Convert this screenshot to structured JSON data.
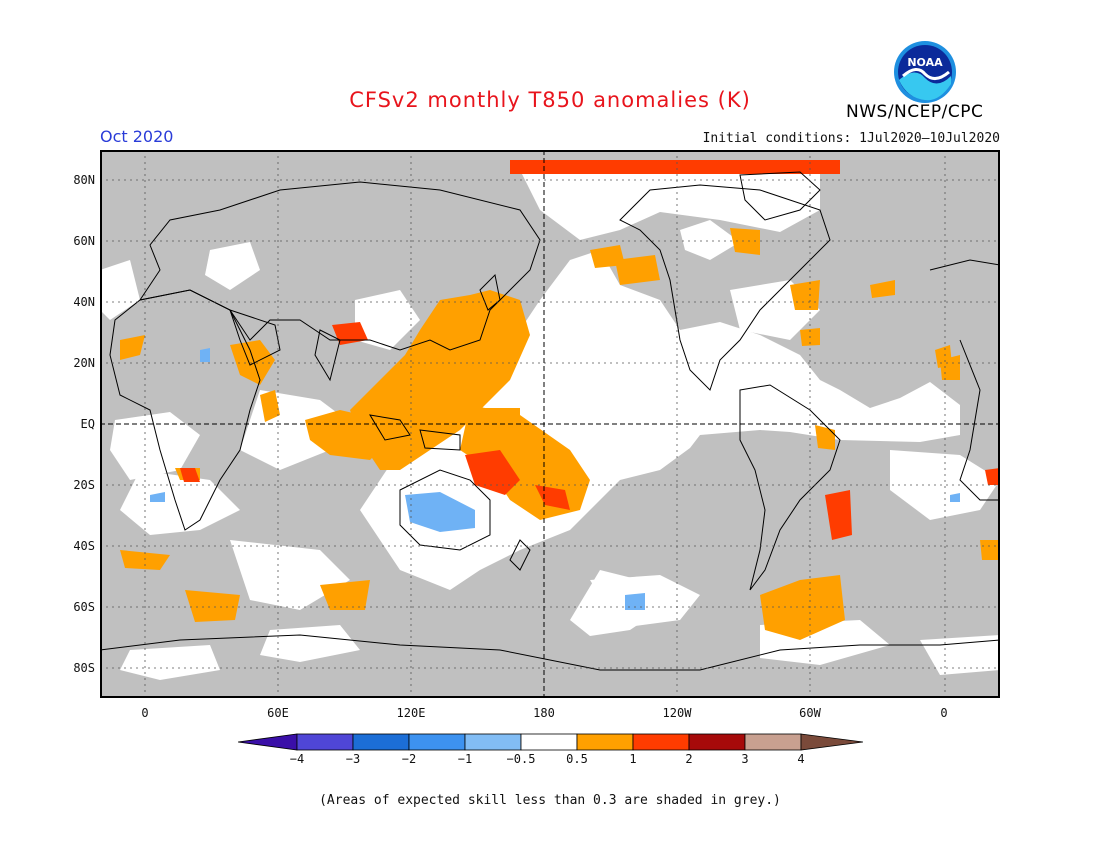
{
  "header": {
    "title": "CFSv2 monthly T850 anomalies (K)",
    "agency": "NWS/NCEP/CPC",
    "logo_text": "NOAA",
    "month": "Oct 2020",
    "initial_conditions": "Initial conditions: 1Jul2020–10Jul2020"
  },
  "map": {
    "projection": "equirectangular",
    "lon_range_deg": [
      -20,
      360
    ],
    "lat_range_deg": [
      -90,
      90
    ],
    "lat_labels": [
      "80N",
      "60N",
      "40N",
      "20N",
      "EQ",
      "20S",
      "40S",
      "60S",
      "80S"
    ],
    "lon_labels": [
      "0",
      "60E",
      "120E",
      "180",
      "120W",
      "60W",
      "0"
    ],
    "colors": {
      "grey_mask": "#c0c0c0",
      "neutral": "#ffffff",
      "pos_05_1": "#ffa000",
      "pos_1_2": "#ff3c00",
      "neg_05_1": "#6fb2f5"
    }
  },
  "colorbar": {
    "labels": [
      "−4",
      "−3",
      "−2",
      "−1",
      "−0.5",
      "0.5",
      "1",
      "2",
      "3",
      "4"
    ],
    "colors": [
      "#3a0fa8",
      "#4f46d6",
      "#1c6ed6",
      "#3d92f0",
      "#82bdf5",
      "#ffffff",
      "#ffa000",
      "#ff3c00",
      "#a60a0a",
      "#c8a090",
      "#7a4a3a"
    ]
  },
  "footnote": "(Areas of expected skill less than 0.3 are shaded in grey.)"
}
